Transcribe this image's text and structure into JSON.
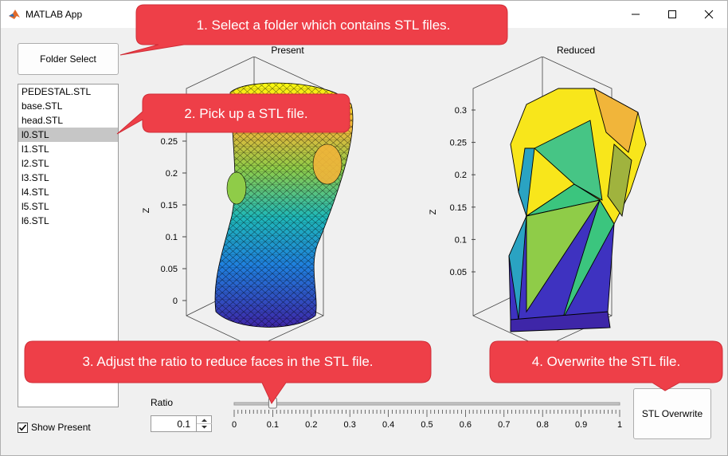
{
  "window": {
    "title": "MATLAB App"
  },
  "buttons": {
    "folder_select": "Folder Select",
    "stl_overwrite": "STL Overwrite"
  },
  "file_list": [
    "PEDESTAL.STL",
    "base.STL",
    "head.STL",
    "l0.STL",
    "l1.STL",
    "l2.STL",
    "l3.STL",
    "l4.STL",
    "l5.STL",
    "l6.STL"
  ],
  "file_list_selected": "l0.STL",
  "show_present": {
    "label": "Show Present",
    "checked": true
  },
  "ratio": {
    "label": "Ratio",
    "value": "0.1",
    "slider_value": 0.1,
    "ticks": [
      "0",
      "0.1",
      "0.2",
      "0.3",
      "0.4",
      "0.5",
      "0.6",
      "0.7",
      "0.8",
      "0.9",
      "1"
    ]
  },
  "axes_present": {
    "title": "Present",
    "zlabel": "Z",
    "zticks": [
      "0",
      "0.05",
      "0.1",
      "0.15",
      "0.2",
      "0.25"
    ]
  },
  "axes_reduced": {
    "title": "Reduced",
    "zlabel": "Z",
    "zticks": [
      "0.05",
      "0.1",
      "0.15",
      "0.2",
      "0.25",
      "0.3"
    ]
  },
  "callouts": {
    "c1": "1. Select a folder which contains STL files.",
    "c2": "2. Pick up a STL file.",
    "c3": "3. Adjust the ratio to reduce faces in the STL file.",
    "c4": "4. Overwrite the STL file."
  },
  "colors": {
    "callout": "#ee3f48",
    "selection": "#c6c6c6"
  }
}
